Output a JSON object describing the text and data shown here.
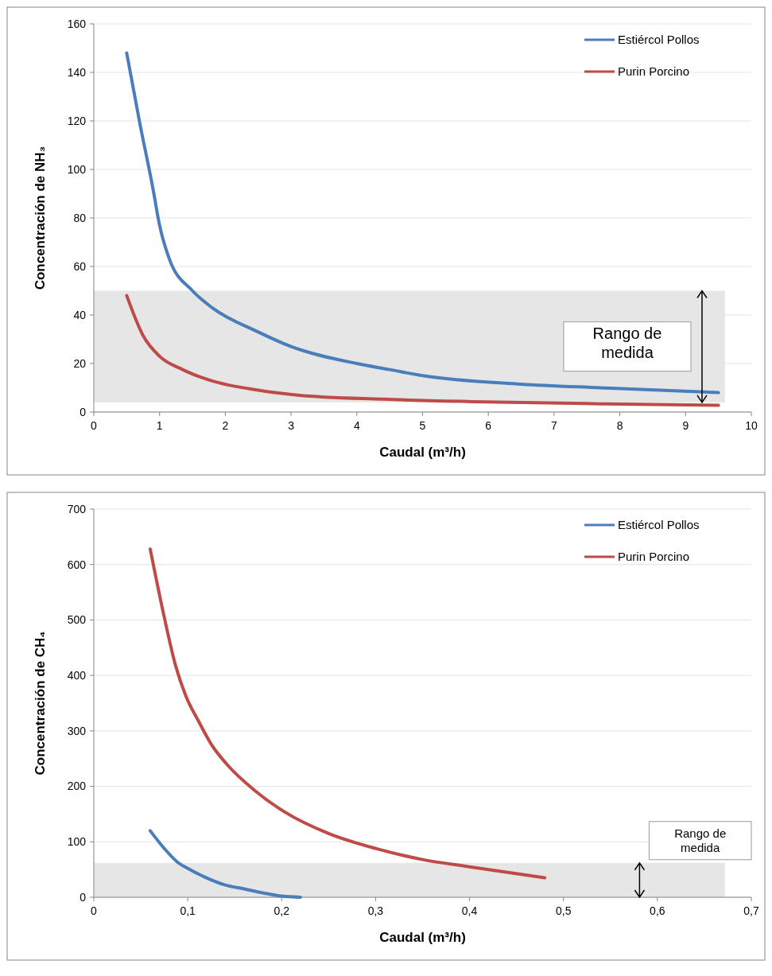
{
  "chart_data": [
    {
      "type": "line",
      "xlabel": "Caudal (m³/h)",
      "ylabel": "Concentración de NH₃",
      "xlim": [
        0,
        10
      ],
      "xticks": [
        0,
        1,
        2,
        3,
        4,
        5,
        6,
        7,
        8,
        9,
        10
      ],
      "ylim": [
        0,
        160
      ],
      "yticks": [
        0,
        20,
        40,
        60,
        80,
        100,
        120,
        140,
        160
      ],
      "grid": "y",
      "legend": "top right",
      "series": [
        {
          "name": "Estiércol Pollos",
          "color": "#4a7ebb",
          "x": [
            0.5,
            0.7,
            0.9,
            1,
            1.15,
            1.5,
            1.8,
            2.5,
            3,
            4,
            4.5,
            5,
            6.5,
            7.7,
            9.5
          ],
          "values": [
            148,
            119,
            92,
            77,
            63,
            50,
            43,
            33,
            27,
            20,
            17.5,
            15,
            11.5,
            10,
            8
          ]
        },
        {
          "name": "Purin Porcino",
          "color": "#be4b48",
          "x": [
            0.5,
            0.75,
            1,
            1.35,
            1.8,
            2.5,
            3.1,
            4.4,
            5.75,
            7.7,
            9.5
          ],
          "values": [
            48,
            31.5,
            23,
            17.5,
            12.8,
            9,
            7,
            5.3,
            4.3,
            3.4,
            2.8
          ]
        }
      ],
      "bands": [
        {
          "axis": "y",
          "from": 4,
          "to": 50,
          "label": "Rango de medida",
          "color": "#dcdcdc"
        }
      ]
    },
    {
      "type": "line",
      "xlabel": "Caudal (m³/h)",
      "ylabel": "Concentración de CH₄",
      "xlim": [
        0,
        0.7
      ],
      "xticks": [
        0,
        {
          "value": 0.1,
          "label": "0,1"
        },
        {
          "value": 0.2,
          "label": "0,2"
        },
        {
          "value": 0.3,
          "label": "0,3"
        },
        {
          "value": 0.4,
          "label": "0,4"
        },
        {
          "value": 0.5,
          "label": "0,5"
        },
        {
          "value": 0.6,
          "label": "0,6"
        },
        {
          "value": 0.7,
          "label": "0,7"
        }
      ],
      "ylim": [
        0,
        700
      ],
      "yticks": [
        0,
        100,
        200,
        300,
        400,
        500,
        600,
        700
      ],
      "grid": "y",
      "legend": "top right",
      "series": [
        {
          "name": "Estiércol Pollos",
          "color": "#4a7ebb",
          "x": [
            0.06,
            0.075,
            0.09,
            0.1,
            0.12,
            0.14,
            0.16,
            0.18,
            0.2,
            0.22
          ],
          "values": [
            120,
            88,
            62,
            52,
            35,
            22,
            15,
            8,
            2,
            0
          ]
        },
        {
          "name": "Purin Porcino",
          "color": "#be4b48",
          "x": [
            0.06,
            0.075,
            0.087,
            0.098,
            0.112,
            0.125,
            0.141,
            0.171,
            0.203,
            0.25,
            0.3,
            0.35,
            0.4,
            0.48
          ],
          "values": [
            628,
            505,
            418,
            363,
            316,
            276,
            241,
            193,
            154,
            115,
            88,
            68,
            55,
            35
          ]
        }
      ],
      "bands": [
        {
          "axis": "y",
          "from": 0,
          "to": 62,
          "label": "Rango de medida",
          "color": "#dcdcdc"
        }
      ]
    }
  ]
}
